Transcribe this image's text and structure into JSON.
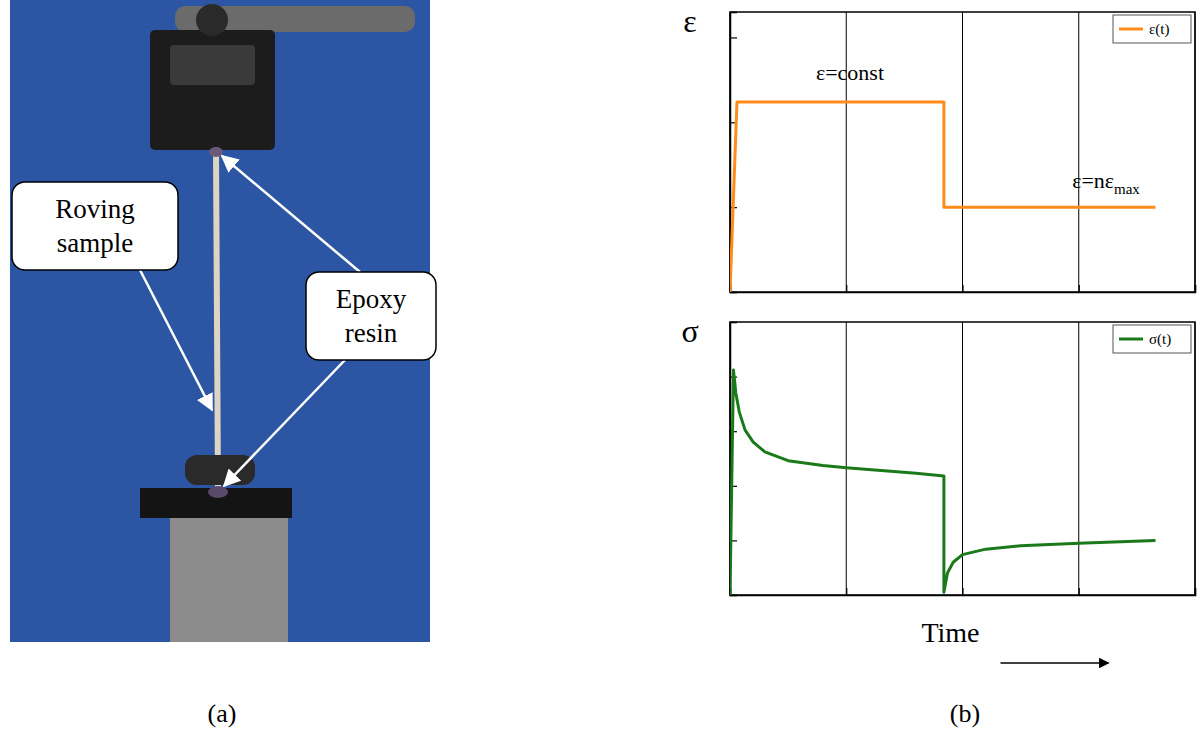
{
  "panel_labels": [
    "(a)",
    "(b)"
  ],
  "callouts": [
    "Roving sample",
    "Epoxy resin"
  ],
  "chart_data": [
    {
      "type": "line",
      "y_label": "ε",
      "x": [
        0,
        0.06,
        1.84,
        1.84,
        3.66
      ],
      "series": [
        {
          "name": "ε(t)",
          "color": "#ff8c1a",
          "values": [
            0,
            2.24,
            2.24,
            1.0,
            1.0
          ]
        }
      ],
      "xlim": [
        0,
        4
      ],
      "ylim": [
        0,
        3.3
      ],
      "xticks": [
        0,
        1,
        2,
        3,
        4
      ],
      "yticks": [
        0,
        1,
        2,
        3
      ],
      "grid": "x",
      "legend": "upper right",
      "tick_labels": false,
      "annotations": [
        {
          "text": "ε=const"
        },
        {
          "text": "ε=nε",
          "subscript": "max"
        }
      ]
    },
    {
      "type": "line",
      "y_label": "σ",
      "x_label": "Time",
      "x": [
        0,
        0.03,
        0.05,
        0.08,
        0.13,
        0.2,
        0.3,
        0.5,
        0.8,
        1.0,
        1.3,
        1.6,
        1.84,
        1.84,
        1.87,
        1.92,
        2.0,
        2.2,
        2.5,
        3.0,
        3.66
      ],
      "series": [
        {
          "name": "σ(t)",
          "color": "#1a7a1a",
          "values": [
            0,
            4.12,
            3.7,
            3.35,
            3.02,
            2.8,
            2.62,
            2.46,
            2.37,
            2.33,
            2.28,
            2.23,
            2.18,
            0.05,
            0.4,
            0.6,
            0.74,
            0.84,
            0.9,
            0.95,
            1.0
          ]
        }
      ],
      "xlim": [
        0,
        4
      ],
      "ylim": [
        0,
        5
      ],
      "xticks": [
        0,
        1,
        2,
        3,
        4
      ],
      "yticks": [
        1,
        2,
        3,
        4
      ],
      "grid": "x",
      "legend": "upper right",
      "tick_labels": false
    }
  ]
}
